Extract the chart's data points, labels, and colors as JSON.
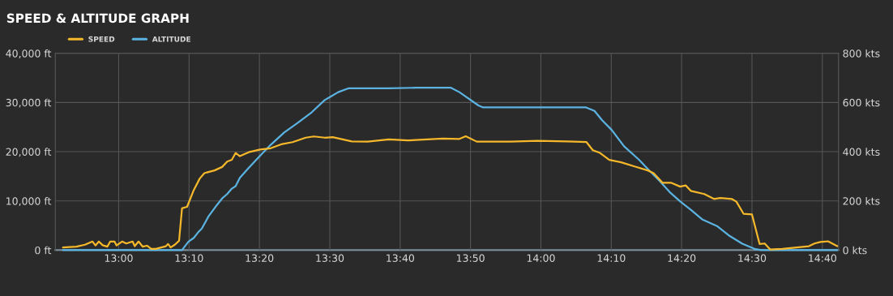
{
  "chart_data": {
    "type": "line",
    "title": "SPEED & ALTITUDE GRAPH",
    "xlim": [
      12.85,
      14.705
    ],
    "xticks": [
      {
        "value": 13.0,
        "label": "13:00"
      },
      {
        "value": 13.1667,
        "label": "13:10"
      },
      {
        "value": 13.3333,
        "label": "13:20"
      },
      {
        "value": 13.5,
        "label": "13:30"
      },
      {
        "value": 13.6667,
        "label": "13:40"
      },
      {
        "value": 13.8333,
        "label": "13:50"
      },
      {
        "value": 14.0,
        "label": "14:00"
      },
      {
        "value": 14.1667,
        "label": "14:10"
      },
      {
        "value": 14.3333,
        "label": "14:20"
      },
      {
        "value": 14.5,
        "label": "14:30"
      },
      {
        "value": 14.6667,
        "label": "14:40"
      }
    ],
    "ylim": [
      0,
      40000
    ],
    "yticks": [
      {
        "value": 0,
        "label": "0 ft"
      },
      {
        "value": 10000,
        "label": "10,000 ft"
      },
      {
        "value": 20000,
        "label": "20,000 ft"
      },
      {
        "value": 30000,
        "label": "30,000 ft"
      },
      {
        "value": 40000,
        "label": "40,000 ft"
      }
    ],
    "y2lim": [
      0,
      800
    ],
    "y2ticks": [
      {
        "value": 0,
        "label": "0 kts"
      },
      {
        "value": 200,
        "label": "200 kts"
      },
      {
        "value": 400,
        "label": "400 kts"
      },
      {
        "value": 600,
        "label": "600 kts"
      },
      {
        "value": 800,
        "label": "800 kts"
      }
    ],
    "grid": true,
    "legend": "top left",
    "marker": "none",
    "line_style": "solid",
    "series": [
      {
        "name": "SPEED",
        "color": "#f5b82a",
        "axis": "y2",
        "x": [
          12.868,
          12.9,
          12.92,
          12.938,
          12.945,
          12.953,
          12.962,
          12.973,
          12.98,
          12.99,
          12.995,
          13.008,
          13.018,
          13.033,
          13.038,
          13.047,
          13.057,
          13.067,
          13.077,
          13.088,
          13.112,
          13.117,
          13.123,
          13.133,
          13.143,
          13.15,
          13.162,
          13.177,
          13.192,
          13.203,
          13.227,
          13.245,
          13.257,
          13.268,
          13.277,
          13.287,
          13.308,
          13.335,
          13.36,
          13.385,
          13.412,
          13.443,
          13.462,
          13.488,
          13.507,
          13.552,
          13.59,
          13.64,
          13.685,
          13.768,
          13.807,
          13.822,
          13.848,
          13.928,
          13.992,
          14.062,
          14.108,
          14.123,
          14.14,
          14.162,
          14.19,
          14.222,
          14.253,
          14.267,
          14.288,
          14.308,
          14.33,
          14.343,
          14.355,
          14.387,
          14.41,
          14.425,
          14.452,
          14.463,
          14.48,
          14.5,
          14.518,
          14.53,
          14.543,
          14.572,
          14.635,
          14.648,
          14.662,
          14.68,
          14.702
        ],
        "values": [
          11,
          14,
          22,
          35,
          19,
          35,
          20,
          14,
          35,
          35,
          19,
          35,
          27,
          35,
          16,
          35,
          14,
          18,
          5,
          5,
          16,
          25,
          11,
          22,
          38,
          170,
          176,
          241,
          291,
          313,
          324,
          338,
          360,
          367,
          395,
          382,
          398,
          409,
          414,
          430,
          439,
          457,
          462,
          457,
          459,
          442,
          441,
          450,
          446,
          453,
          452,
          463,
          441,
          441,
          444,
          442,
          439,
          406,
          395,
          367,
          357,
          340,
          324,
          313,
          274,
          274,
          258,
          263,
          241,
          228,
          208,
          212,
          208,
          197,
          148,
          145,
          25,
          27,
          3,
          5,
          16,
          27,
          33,
          36,
          16
        ]
      },
      {
        "name": "ALTITUDE",
        "color": "#5bb3e2",
        "axis": "y",
        "x": [
          12.868,
          13.15,
          13.165,
          13.178,
          13.188,
          13.197,
          13.213,
          13.232,
          13.245,
          13.257,
          13.268,
          13.277,
          13.287,
          13.308,
          13.335,
          13.36,
          13.392,
          13.423,
          13.457,
          13.488,
          13.5,
          13.52,
          13.545,
          13.64,
          13.705,
          13.787,
          13.807,
          13.852,
          13.863,
          14.107,
          14.127,
          14.145,
          14.168,
          14.197,
          14.232,
          14.26,
          14.282,
          14.305,
          14.33,
          14.355,
          14.383,
          14.417,
          14.445,
          14.477,
          14.508,
          14.522,
          14.702
        ],
        "values": [
          0,
          0,
          1700,
          2500,
          3600,
          4400,
          6900,
          9100,
          10500,
          11400,
          12500,
          13000,
          14700,
          16700,
          19200,
          21400,
          23900,
          25800,
          28000,
          30500,
          31100,
          32100,
          32900,
          32900,
          33000,
          33000,
          32100,
          29400,
          29000,
          29000,
          28300,
          26400,
          24400,
          21100,
          18400,
          15900,
          14000,
          11800,
          9900,
          8200,
          6200,
          4900,
          3000,
          1300,
          200,
          0,
          0
        ]
      }
    ]
  }
}
